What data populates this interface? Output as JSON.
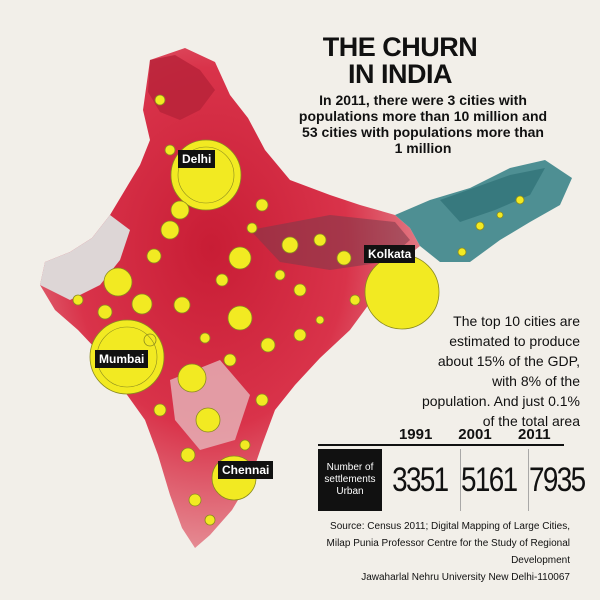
{
  "title": {
    "line1": "THE CHURN",
    "line2": "IN INDIA"
  },
  "intro": "In 2011, there were 3 cities with populations more than 10 million and 53 cities with populations more than 1 million",
  "map_labels": {
    "delhi": "Delhi",
    "kolkata": "Kolkata",
    "mumbai": "Mumbai",
    "chennai": "Chennai"
  },
  "gdp_note": "The top 10 cities are estimated to produce about 15% of the GDP, with 8% of the population. And just 0.1% of the total area",
  "stats_table": {
    "years": [
      "1991",
      "2001",
      "2011"
    ],
    "row_label": "Number of settlements Urban",
    "values": [
      "3351",
      "5161",
      "7935"
    ]
  },
  "source": {
    "line1": "Source: Census 2011; Digital Mapping of Large Cities,",
    "line2": "Milap Punia Professor Centre for the Study of Regional Development",
    "line3": "Jawaharlal Nehru University New Delhi-110067"
  },
  "colors": {
    "map_red": "#d8223a",
    "map_pale": "#ddd6d6",
    "map_teal": "#4e8f93",
    "circle_fill": "#f2ea22",
    "label_bg": "#111111",
    "background": "#f2efe9"
  }
}
